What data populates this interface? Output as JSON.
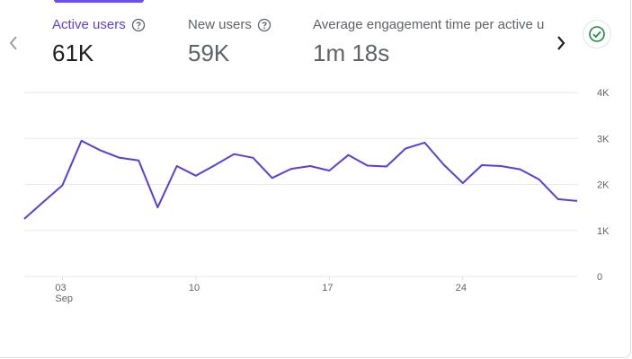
{
  "metrics": [
    {
      "label": "Active users",
      "value": "61K"
    },
    {
      "label": "New users",
      "value": "59K"
    },
    {
      "label": "Average engagement time per active us",
      "value": "1m 18s"
    }
  ],
  "icons": {
    "help": "help-circle-icon",
    "prev": "chevron-left-icon",
    "next": "chevron-right-icon",
    "status": "check-circle-icon"
  },
  "colors": {
    "accent": "#5c3ee8",
    "line": "#5b3de0",
    "status_green": "#1e8e3e"
  },
  "chart_data": {
    "type": "line",
    "series": [
      {
        "name": "Active users",
        "values": [
          1250,
          1620,
          1980,
          2950,
          2740,
          2580,
          2520,
          1500,
          2400,
          2190,
          2420,
          2660,
          2580,
          2140,
          2340,
          2400,
          2300,
          2640,
          2410,
          2390,
          2780,
          2910,
          2430,
          2030,
          2420,
          2400,
          2330,
          2110,
          1680,
          1640
        ]
      }
    ],
    "x": [
      "Sep 1",
      "Sep 2",
      "Sep 3",
      "Sep 4",
      "Sep 5",
      "Sep 6",
      "Sep 7",
      "Sep 8",
      "Sep 9",
      "Sep 10",
      "Sep 11",
      "Sep 12",
      "Sep 13",
      "Sep 14",
      "Sep 15",
      "Sep 16",
      "Sep 17",
      "Sep 18",
      "Sep 19",
      "Sep 20",
      "Sep 21",
      "Sep 22",
      "Sep 23",
      "Sep 24",
      "Sep 25",
      "Sep 26",
      "Sep 27",
      "Sep 28",
      "Sep 29",
      "Sep 30"
    ],
    "x_ticks": [
      {
        "label": "03",
        "sub": "Sep",
        "index": 2
      },
      {
        "label": "10",
        "sub": "",
        "index": 9
      },
      {
        "label": "17",
        "sub": "",
        "index": 16
      },
      {
        "label": "24",
        "sub": "",
        "index": 23
      }
    ],
    "y_ticks": [
      {
        "label": "4K",
        "value": 4000
      },
      {
        "label": "3K",
        "value": 3000
      },
      {
        "label": "2K",
        "value": 2000
      },
      {
        "label": "1K",
        "value": 1000
      },
      {
        "label": "0",
        "value": 0
      }
    ],
    "ylim": [
      0,
      4000
    ],
    "grid": true
  }
}
